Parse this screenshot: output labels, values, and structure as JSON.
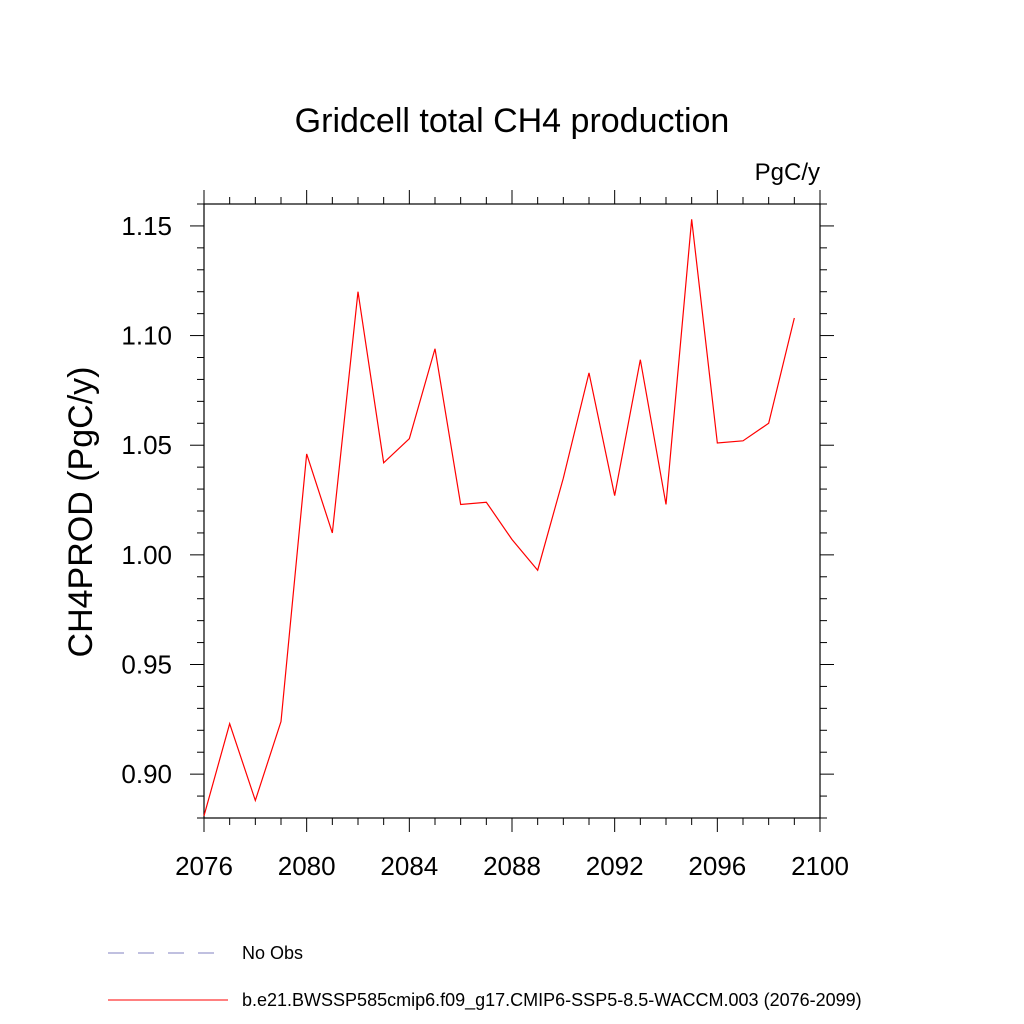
{
  "chart_data": {
    "type": "line",
    "title": "Gridcell total CH4 production",
    "units_label": "PgC/y",
    "ylabel": "CH4PROD  (PgC/y)",
    "xlabel": "",
    "xlim": [
      2076,
      2100
    ],
    "ylim": [
      0.88,
      1.16
    ],
    "x_ticks": [
      2076,
      2080,
      2084,
      2088,
      2092,
      2096,
      2100
    ],
    "y_ticks": [
      0.9,
      0.95,
      1.0,
      1.05,
      1.1,
      1.15
    ],
    "y_tick_labels": [
      "0.90",
      "0.95",
      "1.00",
      "1.05",
      "1.10",
      "1.15"
    ],
    "x": [
      2076,
      2077,
      2078,
      2079,
      2080,
      2081,
      2082,
      2083,
      2084,
      2085,
      2086,
      2087,
      2088,
      2089,
      2090,
      2091,
      2092,
      2093,
      2094,
      2095,
      2096,
      2097,
      2098,
      2099
    ],
    "series": [
      {
        "name": "b.e21.BWSSP585cmip6.f09_g17.CMIP6-SSP5-8.5-WACCM.003 (2076-2099)",
        "color": "#ff0000",
        "values": [
          0.881,
          0.923,
          0.888,
          0.924,
          1.046,
          1.01,
          1.12,
          1.042,
          1.053,
          1.094,
          1.023,
          1.024,
          1.007,
          0.993,
          1.035,
          1.083,
          1.027,
          1.089,
          1.023,
          1.153,
          1.051,
          1.052,
          1.06,
          1.108
        ]
      }
    ],
    "legend": [
      {
        "label": "No Obs",
        "color": "#8080c0",
        "style": "dashed"
      },
      {
        "label": "b.e21.BWSSP585cmip6.f09_g17.CMIP6-SSP5-8.5-WACCM.003 (2076-2099)",
        "color": "#ff0000",
        "style": "solid"
      }
    ],
    "legend_position": "bottom"
  }
}
